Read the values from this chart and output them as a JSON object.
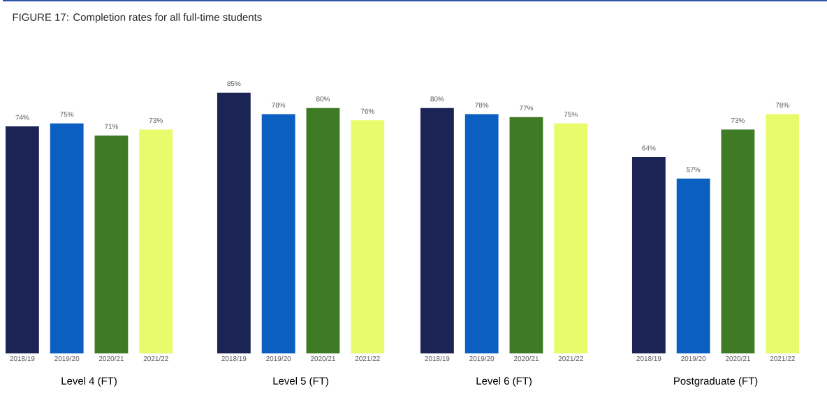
{
  "chart_data": [
    {
      "type": "bar",
      "title": "FIGURE 17: Completion rates for all full-time students",
      "xlabel": "Level 4 (FT)",
      "categories": [
        "2018/19",
        "2019/20",
        "2020/21",
        "2021/22"
      ],
      "values": [
        74,
        75,
        71,
        73
      ],
      "value_labels": [
        "74%",
        "75%",
        "71%",
        "73%"
      ],
      "colors": [
        "#1b2454",
        "#0b5fc0",
        "#3f7a25",
        "#e8fb6a"
      ],
      "tick_labels": "x"
    },
    {
      "type": "bar",
      "xlabel": "Level 5 (FT)",
      "categories": [
        "2018/19",
        "2019/20",
        "2020/21",
        "2021/22"
      ],
      "values": [
        85,
        78,
        80,
        76
      ],
      "value_labels": [
        "85%",
        "78%",
        "80%",
        "76%"
      ],
      "colors": [
        "#1b2454",
        "#0b5fc0",
        "#3f7a25",
        "#e8fb6a"
      ],
      "tick_labels": "x"
    },
    {
      "type": "bar",
      "xlabel": "Level 6 (FT)",
      "categories": [
        "2018/19",
        "2019/20",
        "2020/21",
        "2021/22"
      ],
      "values": [
        80,
        78,
        77,
        75
      ],
      "value_labels": [
        "80%",
        "78%",
        "77%",
        "75%"
      ],
      "colors": [
        "#1b2454",
        "#0b5fc0",
        "#3f7a25",
        "#e8fb6a"
      ],
      "tick_labels": "x"
    },
    {
      "type": "bar",
      "xlabel": "Postgraduate (FT)",
      "categories": [
        "2018/19",
        "2019/20",
        "2020/21",
        "2021/22"
      ],
      "values": [
        64,
        57,
        73,
        78
      ],
      "value_labels": [
        "64%",
        "57%",
        "73%",
        "78%"
      ],
      "colors": [
        "#1b2454",
        "#0b5fc0",
        "#3f7a25",
        "#e8fb6a"
      ],
      "tick_labels": "x"
    }
  ]
}
